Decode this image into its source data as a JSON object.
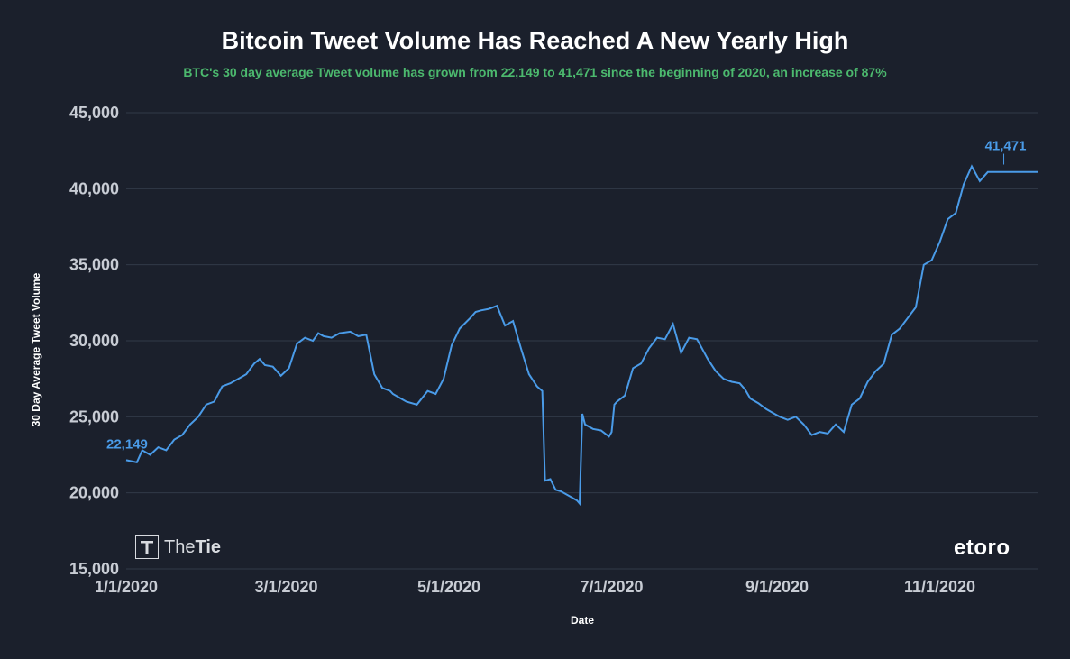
{
  "brand": {
    "thetie_logo_text": "TheTie",
    "etoro_logo_text": "etoro"
  },
  "colors": {
    "background": "#1b202c",
    "line": "#4a9be8",
    "subtitle": "#4cb96e",
    "grid": "#323a48"
  },
  "chart_data": {
    "type": "line",
    "title": "Bitcoin Tweet Volume Has Reached A New Yearly High",
    "subtitle": "BTC's 30 day average Tweet volume has grown from 22,149 to 41,471 since the beginning of 2020, an increase of 87%",
    "xlabel": "Date",
    "ylabel": "30 Day Average Tweet Volume",
    "xlim": [
      "2020-01-01",
      "2020-12-08"
    ],
    "ylim": [
      15000,
      45000
    ],
    "x_ticks": [
      "1/1/2020",
      "3/1/2020",
      "5/1/2020",
      "7/1/2020",
      "9/1/2020",
      "11/1/2020"
    ],
    "y_ticks": [
      "15,000",
      "20,000",
      "25,000",
      "30,000",
      "35,000",
      "40,000",
      "45,000"
    ],
    "grid": true,
    "legend": "none",
    "series": [
      {
        "x": [
          "2020-01-01",
          "2020-01-05",
          "2020-01-07",
          "2020-01-10",
          "2020-01-13",
          "2020-01-16",
          "2020-01-19",
          "2020-01-22",
          "2020-01-25",
          "2020-01-28",
          "2020-01-31",
          "2020-02-03",
          "2020-02-06",
          "2020-02-09",
          "2020-02-12",
          "2020-02-15",
          "2020-02-18",
          "2020-02-20",
          "2020-02-22",
          "2020-02-25",
          "2020-02-28",
          "2020-03-02",
          "2020-03-05",
          "2020-03-08",
          "2020-03-11",
          "2020-03-13",
          "2020-03-15",
          "2020-03-18",
          "2020-03-21",
          "2020-03-25",
          "2020-03-28",
          "2020-03-31",
          "2020-04-03",
          "2020-04-06",
          "2020-04-09",
          "2020-04-10",
          "2020-04-12",
          "2020-04-13",
          "2020-04-15",
          "2020-04-19",
          "2020-04-23",
          "2020-04-26",
          "2020-04-29",
          "2020-05-02",
          "2020-05-05",
          "2020-05-09",
          "2020-05-11",
          "2020-05-13",
          "2020-05-16",
          "2020-05-19",
          "2020-05-22",
          "2020-05-25",
          "2020-05-28",
          "2020-05-31",
          "2020-06-03",
          "2020-06-05",
          "2020-06-06",
          "2020-06-08",
          "2020-06-10",
          "2020-06-12",
          "2020-06-15",
          "2020-06-18",
          "2020-06-19",
          "2020-06-20",
          "2020-06-21",
          "2020-06-24",
          "2020-06-27",
          "2020-06-30",
          "2020-07-01",
          "2020-07-02",
          "2020-07-03",
          "2020-07-06",
          "2020-07-09",
          "2020-07-12",
          "2020-07-15",
          "2020-07-18",
          "2020-07-21",
          "2020-07-24",
          "2020-07-27",
          "2020-07-30",
          "2020-08-02",
          "2020-08-06",
          "2020-08-09",
          "2020-08-12",
          "2020-08-15",
          "2020-08-18",
          "2020-08-20",
          "2020-08-22",
          "2020-08-25",
          "2020-08-28",
          "2020-08-31",
          "2020-09-02",
          "2020-09-05",
          "2020-09-08",
          "2020-09-11",
          "2020-09-14",
          "2020-09-17",
          "2020-09-20",
          "2020-09-23",
          "2020-09-26",
          "2020-09-29",
          "2020-10-02",
          "2020-10-05",
          "2020-10-08",
          "2020-10-11",
          "2020-10-14",
          "2020-10-17",
          "2020-10-20",
          "2020-10-23",
          "2020-10-26",
          "2020-10-29",
          "2020-11-01",
          "2020-11-04",
          "2020-11-07",
          "2020-11-10",
          "2020-11-13",
          "2020-11-16",
          "2020-11-19",
          "2020-11-22",
          "2020-11-25",
          "2020-11-28",
          "2020-12-01",
          "2020-12-04",
          "2020-12-06",
          "2020-12-08"
        ],
        "y": [
          22149,
          22000,
          22800,
          22500,
          23000,
          22800,
          23500,
          23800,
          24500,
          25000,
          25800,
          26000,
          27000,
          27200,
          27500,
          27800,
          28500,
          28800,
          28400,
          28300,
          27700,
          28200,
          29800,
          30200,
          30000,
          30500,
          30300,
          30200,
          30500,
          30600,
          30300,
          30400,
          27800,
          26900,
          26700,
          26500,
          26300,
          26200,
          26000,
          25800,
          26700,
          26500,
          27500,
          29700,
          30800,
          31500,
          31900,
          32000,
          32100,
          32300,
          31000,
          31300,
          29500,
          27800,
          27000,
          26700,
          20800,
          20900,
          20200,
          20100,
          19800,
          19500,
          19300,
          25200,
          24500,
          24200,
          24100,
          23700,
          24000,
          25800,
          26000,
          26400,
          28200,
          28500,
          29500,
          30200,
          30100,
          31100,
          29200,
          30200,
          30100,
          28800,
          28000,
          27500,
          27300,
          27200,
          26800,
          26200,
          25900,
          25500,
          25200,
          25000,
          24800,
          25000,
          24500,
          23800,
          24000,
          23900,
          24500,
          24000,
          25800,
          26200,
          27300,
          28000,
          28500,
          30400,
          30800,
          31500,
          32200,
          35000,
          35300,
          36500,
          38000,
          38400,
          40300,
          41471,
          40500,
          41100,
          41100,
          41100,
          41100,
          41100,
          41100,
          41100,
          41100
        ]
      }
    ],
    "annotations": [
      {
        "label": "22,149",
        "x": "2020-01-01",
        "y": 22149
      },
      {
        "label": "41,471",
        "x": "2020-11-25",
        "y": 41471
      }
    ]
  }
}
